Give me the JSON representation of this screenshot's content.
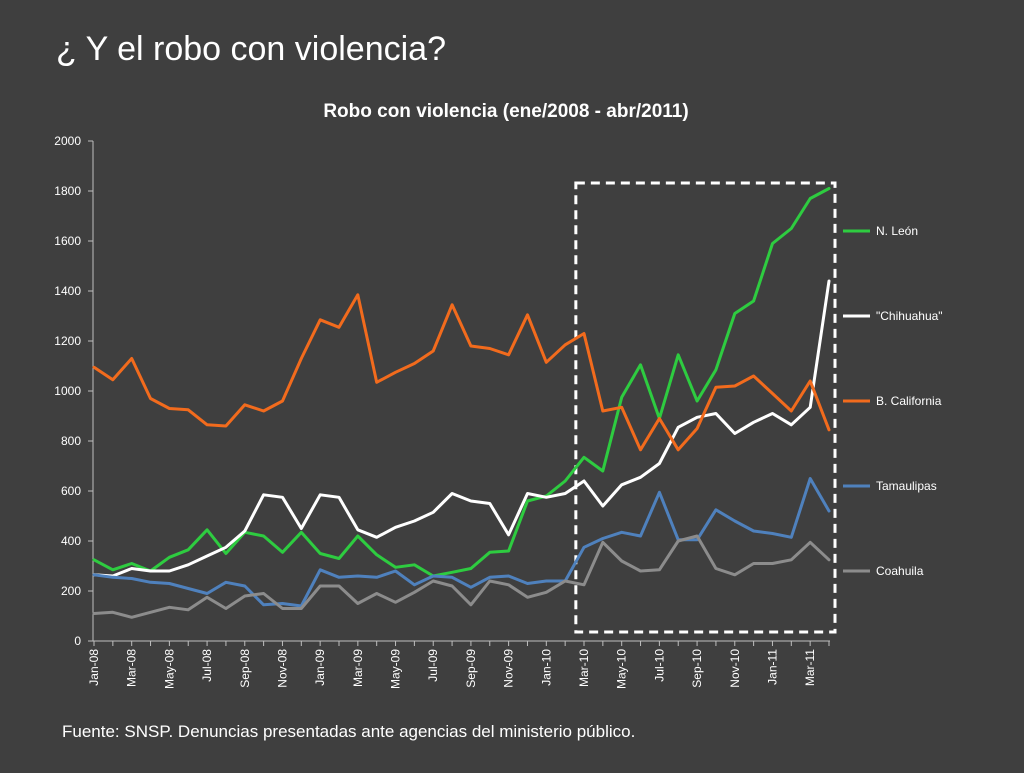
{
  "slide": {
    "title": "¿ Y el robo con violencia?",
    "footnote": "Fuente: SNSP. Denuncias presentadas ante agencias del ministerio público."
  },
  "chart_data": {
    "type": "line",
    "title": "Robo con violencia (ene/2008 - abr/2011)",
    "xlabel": "",
    "ylabel": "",
    "ylim": [
      0,
      2000
    ],
    "yticks": [
      0,
      200,
      400,
      600,
      800,
      1000,
      1200,
      1400,
      1600,
      1800,
      2000
    ],
    "grid": false,
    "legend_position": "right",
    "x": [
      "Jan-08",
      "Feb-08",
      "Mar-08",
      "Apr-08",
      "May-08",
      "Jun-08",
      "Jul-08",
      "Aug-08",
      "Sep-08",
      "Oct-08",
      "Nov-08",
      "Dec-08",
      "Jan-09",
      "Feb-09",
      "Mar-09",
      "Apr-09",
      "May-09",
      "Jun-09",
      "Jul-09",
      "Aug-09",
      "Sep-09",
      "Oct-09",
      "Nov-09",
      "Dec-09",
      "Jan-10",
      "Feb-10",
      "Mar-10",
      "Apr-10",
      "May-10",
      "Jun-10",
      "Jul-10",
      "Aug-10",
      "Sep-10",
      "Oct-10",
      "Nov-10",
      "Dec-10",
      "Jan-11",
      "Feb-11",
      "Mar-11",
      "Apr-11"
    ],
    "x_tick_labels": [
      "Jan-08",
      "Mar-08",
      "May-08",
      "Jul-08",
      "Sep-08",
      "Nov-08",
      "Jan-09",
      "Mar-09",
      "May-09",
      "Jul-09",
      "Sep-09",
      "Nov-09",
      "Jan-10",
      "Mar-10",
      "May-10",
      "Jul-10",
      "Sep-10",
      "Nov-10",
      "Jan-11",
      "Mar-11"
    ],
    "highlight_box": {
      "x_start": "Apr-10",
      "x_end": "Apr-11",
      "y_range": [
        40,
        1820
      ],
      "style": "dashed"
    },
    "series": [
      {
        "name": "N. León",
        "color": "#2ecc40",
        "values": [
          325,
          285,
          310,
          280,
          335,
          365,
          445,
          350,
          435,
          420,
          355,
          435,
          350,
          330,
          420,
          345,
          295,
          305,
          260,
          275,
          290,
          355,
          360,
          560,
          580,
          640,
          735,
          680,
          975,
          1105,
          890,
          1145,
          960,
          1085,
          1310,
          1360,
          1590,
          1650,
          1770,
          1810
        ]
      },
      {
        "name": "\"Chihuahua\"",
        "color": "#ffffff",
        "values": [
          265,
          260,
          290,
          280,
          280,
          305,
          340,
          375,
          440,
          585,
          575,
          450,
          585,
          575,
          445,
          415,
          455,
          480,
          515,
          590,
          560,
          550,
          425,
          590,
          575,
          590,
          640,
          540,
          625,
          655,
          710,
          855,
          895,
          910,
          830,
          875,
          910,
          865,
          935,
          1440
        ]
      },
      {
        "name": "B. California",
        "color": "#f26b1d",
        "values": [
          1095,
          1045,
          1130,
          970,
          930,
          925,
          865,
          860,
          945,
          920,
          960,
          1130,
          1285,
          1255,
          1385,
          1035,
          1075,
          1110,
          1160,
          1345,
          1180,
          1170,
          1145,
          1305,
          1115,
          1185,
          1230,
          920,
          935,
          765,
          890,
          765,
          850,
          1015,
          1020,
          1060,
          990,
          920,
          1040,
          845
        ]
      },
      {
        "name": "Tamaulipas",
        "color": "#4f81bd",
        "values": [
          265,
          255,
          250,
          235,
          230,
          210,
          190,
          235,
          220,
          145,
          150,
          140,
          285,
          255,
          260,
          255,
          280,
          225,
          260,
          255,
          215,
          255,
          260,
          230,
          240,
          240,
          375,
          410,
          435,
          420,
          595,
          405,
          405,
          525,
          480,
          440,
          430,
          415,
          650,
          520
        ]
      },
      {
        "name": "Coahuila",
        "color": "#8c8c8c",
        "values": [
          110,
          115,
          95,
          115,
          135,
          125,
          175,
          130,
          180,
          190,
          130,
          130,
          220,
          220,
          150,
          190,
          155,
          195,
          240,
          220,
          145,
          240,
          225,
          175,
          195,
          240,
          225,
          395,
          320,
          280,
          285,
          400,
          420,
          290,
          265,
          310,
          310,
          325,
          395,
          325
        ]
      }
    ]
  }
}
